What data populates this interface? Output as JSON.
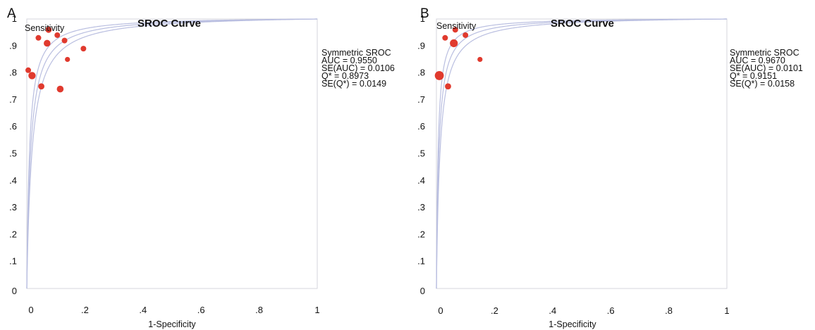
{
  "chart_data": [
    {
      "type": "scatter",
      "panel_label": "A",
      "title": "SROC Curve",
      "ylabel": "Sensitivity",
      "xlabel": "1-Specificity",
      "xlim": [
        0,
        1
      ],
      "ylim": [
        0,
        1
      ],
      "x_ticks": [
        "0",
        ".2",
        ".4",
        ".6",
        ".8",
        "1"
      ],
      "y_ticks": [
        "0",
        ".1",
        ".2",
        ".3",
        ".4",
        ".5",
        ".6",
        ".7",
        ".8",
        ".9",
        "1"
      ],
      "stats": [
        "Symmetric SROC",
        "AUC = 0.9550",
        "SE(AUC) = 0.0106",
        "Q* = 0.8973",
        "SE(Q*) = 0.0149"
      ],
      "curves_q": [
        0.8973,
        0.8824,
        0.9122
      ],
      "points": [
        {
          "x": 0.005,
          "y": 0.81,
          "size": 1.0
        },
        {
          "x": 0.018,
          "y": 0.79,
          "size": 1.3
        },
        {
          "x": 0.04,
          "y": 0.93,
          "size": 1.0
        },
        {
          "x": 0.05,
          "y": 0.75,
          "size": 1.1
        },
        {
          "x": 0.07,
          "y": 0.91,
          "size": 1.2
        },
        {
          "x": 0.075,
          "y": 0.96,
          "size": 1.1
        },
        {
          "x": 0.105,
          "y": 0.94,
          "size": 1.0
        },
        {
          "x": 0.115,
          "y": 0.74,
          "size": 1.2
        },
        {
          "x": 0.13,
          "y": 0.92,
          "size": 1.0
        },
        {
          "x": 0.14,
          "y": 0.85,
          "size": 0.9
        },
        {
          "x": 0.195,
          "y": 0.89,
          "size": 1.0
        }
      ]
    },
    {
      "type": "scatter",
      "panel_label": "B",
      "title": "SROC Curve",
      "ylabel": "Sensitivity",
      "xlabel": "1-Specificity",
      "xlim": [
        0,
        1
      ],
      "ylim": [
        0,
        1
      ],
      "x_ticks": [
        "0",
        ".2",
        ".4",
        ".6",
        ".8",
        "1"
      ],
      "y_ticks": [
        "0",
        ".1",
        ".2",
        ".3",
        ".4",
        ".5",
        ".6",
        ".7",
        ".8",
        ".9",
        "1"
      ],
      "stats": [
        "Symmetric SROC",
        "AUC = 0.9670",
        "SE(AUC) = 0.0101",
        "Q* = 0.9151",
        "SE(Q*) = 0.0158"
      ],
      "curves_q": [
        0.9151,
        0.9,
        0.93
      ],
      "points": [
        {
          "x": 0.01,
          "y": 0.79,
          "size": 1.6
        },
        {
          "x": 0.03,
          "y": 0.93,
          "size": 1.0
        },
        {
          "x": 0.04,
          "y": 0.75,
          "size": 1.1
        },
        {
          "x": 0.06,
          "y": 0.91,
          "size": 1.4
        },
        {
          "x": 0.065,
          "y": 0.96,
          "size": 1.0
        },
        {
          "x": 0.1,
          "y": 0.94,
          "size": 1.0
        },
        {
          "x": 0.15,
          "y": 0.85,
          "size": 0.9
        }
      ]
    }
  ]
}
